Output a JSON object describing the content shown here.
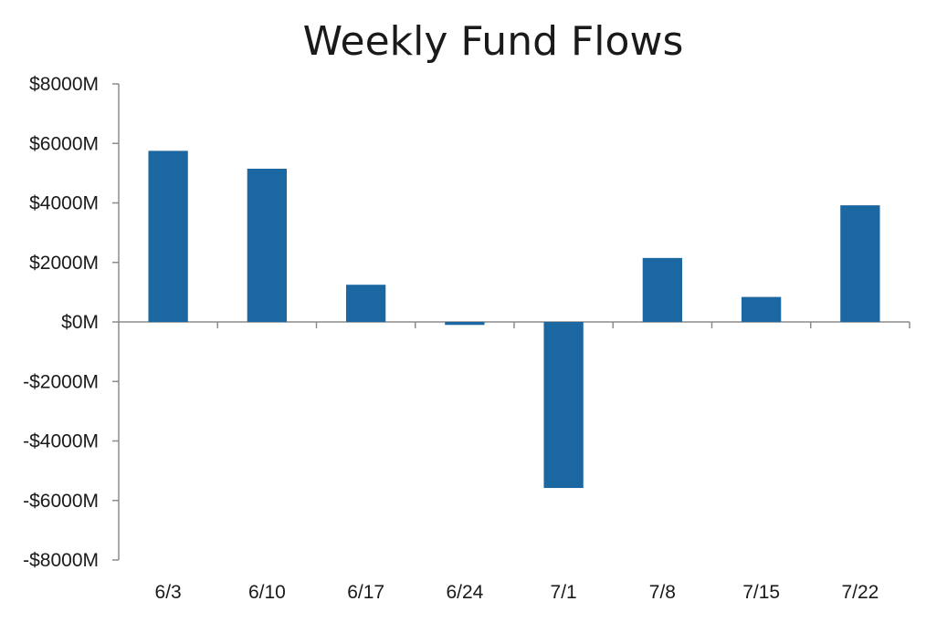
{
  "chart_data": {
    "type": "bar",
    "title": "Weekly Fund Flows",
    "xlabel": "",
    "ylabel": "",
    "categories": [
      "6/3",
      "6/10",
      "6/17",
      "6/24",
      "7/1",
      "7/8",
      "7/15",
      "7/22"
    ],
    "values": [
      5750,
      5150,
      1250,
      -100,
      -5580,
      2150,
      840,
      3920
    ],
    "unit": "M",
    "ylim": [
      -8000,
      8000
    ],
    "yticks": [
      8000,
      6000,
      4000,
      2000,
      0,
      -2000,
      -4000,
      -6000,
      -8000
    ],
    "ytick_labels": [
      "$8000M",
      "$6000M",
      "$4000M",
      "$2000M",
      "$0M",
      "-$2000M",
      "-$4000M",
      "-$6000M",
      "-$8000M"
    ],
    "grid": false,
    "legend": "none",
    "bar_color": "#1b67a1",
    "axis_color": "#8c8c8c"
  }
}
